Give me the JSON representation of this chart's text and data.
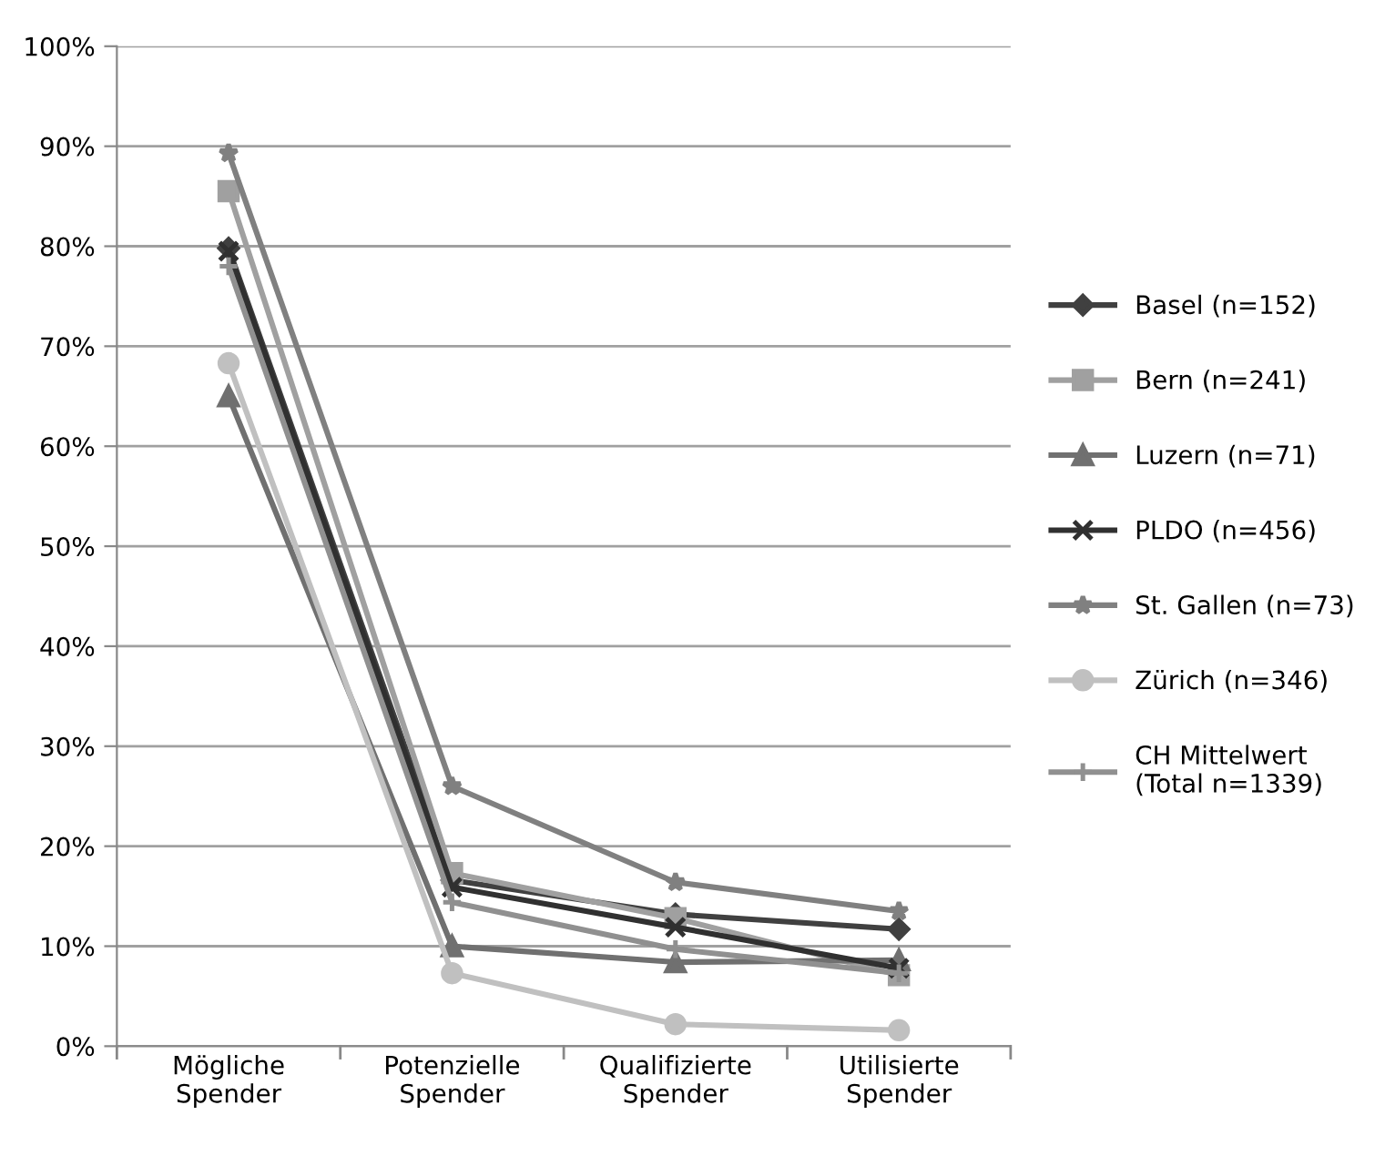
{
  "chart_data": {
    "type": "line",
    "categories": [
      "Mögliche\nSpender",
      "Potenzielle\nSpender",
      "Qualifizierte\nSpender",
      "Utilisierte\nSpender"
    ],
    "ylim": [
      0,
      1
    ],
    "yticks": [
      {
        "value": 0,
        "label": "0%"
      },
      {
        "value": 0.1,
        "label": "10%"
      },
      {
        "value": 0.2,
        "label": "20%"
      },
      {
        "value": 0.3,
        "label": "30%"
      },
      {
        "value": 0.4,
        "label": "40%"
      },
      {
        "value": 0.5,
        "label": "50%"
      },
      {
        "value": 0.6,
        "label": "60%"
      },
      {
        "value": 0.7,
        "label": "70%"
      },
      {
        "value": 0.8,
        "label": "80%"
      },
      {
        "value": 0.9,
        "label": "90%"
      },
      {
        "value": 1,
        "label": "100%"
      }
    ],
    "grid": "y",
    "legend": "right",
    "line_style": "solid",
    "series": [
      {
        "name": "Basel (n=152)",
        "color": "#404040",
        "marker": "diamond",
        "values": [
          0.798,
          0.166,
          0.132,
          0.117
        ]
      },
      {
        "name": "Bern (n=241)",
        "color": "#a0a0a0",
        "marker": "square",
        "values": [
          0.855,
          0.173,
          0.128,
          0.071
        ]
      },
      {
        "name": "Luzern (n=71)",
        "color": "#707070",
        "marker": "triangle",
        "values": [
          0.65,
          0.1,
          0.084,
          0.086
        ]
      },
      {
        "name": "PLDO (n=456)",
        "color": "#303030",
        "marker": "cross",
        "values": [
          0.795,
          0.159,
          0.119,
          0.078
        ]
      },
      {
        "name": "St. Gallen (n=73)",
        "color": "#808080",
        "marker": "star",
        "values": [
          0.893,
          0.26,
          0.164,
          0.135
        ]
      },
      {
        "name": "Zürich (n=346)",
        "color": "#c0c0c0",
        "marker": "circle",
        "values": [
          0.683,
          0.073,
          0.022,
          0.016
        ]
      },
      {
        "name": "CH Mittelwert\n(Total n=1339)",
        "color": "#909090",
        "marker": "plus",
        "values": [
          0.78,
          0.144,
          0.097,
          0.073
        ]
      }
    ]
  }
}
